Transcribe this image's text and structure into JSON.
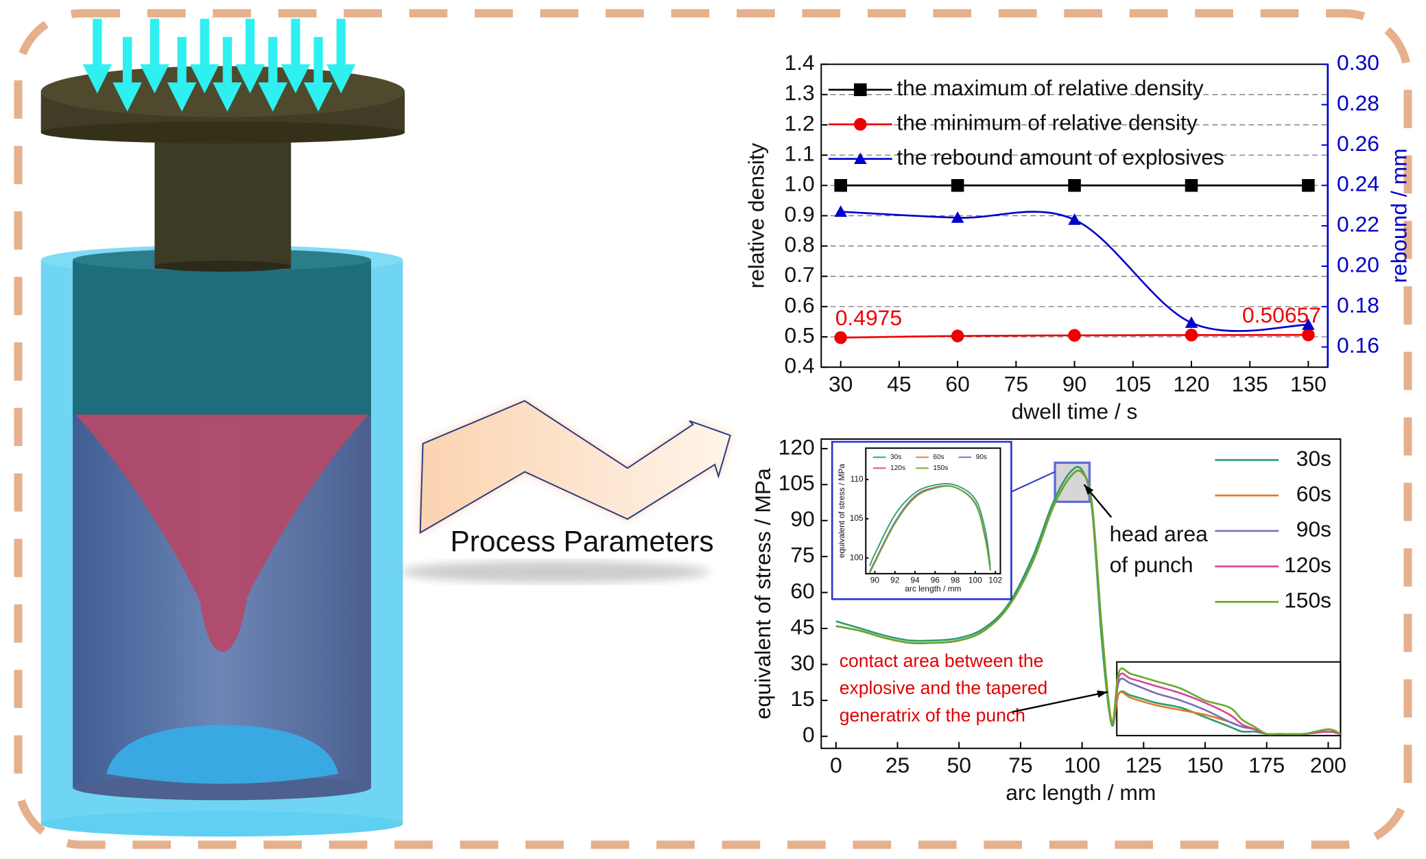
{
  "arrow_label": "Process Parameters",
  "chart_data": [
    {
      "type": "line",
      "x_label": "dwell time / s",
      "y_label": "relative density",
      "y2_label": "rebound / mm",
      "x": [
        30,
        60,
        90,
        120,
        150
      ],
      "xlim": [
        25,
        155
      ],
      "xticks": [
        30,
        45,
        60,
        75,
        90,
        105,
        120,
        135,
        150
      ],
      "ylim": [
        0.4,
        1.4
      ],
      "yticks": [
        0.4,
        0.5,
        0.6,
        0.7,
        0.8,
        0.9,
        {
          "value": 1,
          "label": "1.0"
        },
        1.1,
        1.2,
        1.3,
        1.4
      ],
      "y2lim": [
        0.15,
        0.3
      ],
      "y2ticks": [
        0.16,
        0.18,
        {
          "value": 0.2,
          "label": "0.20"
        },
        0.22,
        0.24,
        0.26,
        0.28,
        {
          "value": 0.3,
          "label": "0.30"
        }
      ],
      "grid": true,
      "legend": "upper left",
      "y2_color": "#0000cc",
      "series": [
        {
          "name": "the maximum of relative density",
          "color": "#000000",
          "marker": "square",
          "values": [
            1,
            1,
            1,
            1,
            1
          ]
        },
        {
          "name": "the minimum of relative density",
          "color": "#ee0000",
          "marker": "circle",
          "values": [
            0.4975,
            0.503,
            0.505,
            0.506,
            0.50657
          ],
          "value_labels": [
            "0.4975",
            null,
            null,
            null,
            "0.50657"
          ]
        },
        {
          "name": "the rebound amount of explosives",
          "color": "#0000cc",
          "marker": "triangle",
          "axis": "y2",
          "values": [
            0.227,
            0.224,
            0.223,
            0.172,
            0.171
          ]
        }
      ]
    },
    {
      "type": "line",
      "x_label": "arc length / mm",
      "y_label": "equivalent of stress / MPa",
      "x": [
        0,
        10,
        20,
        30,
        40,
        50,
        60,
        70,
        80,
        88,
        95,
        100,
        104,
        108,
        112,
        115,
        120,
        130,
        140,
        150,
        160,
        165,
        170,
        175,
        180,
        190,
        200,
        205
      ],
      "xlim": [
        -6,
        205
      ],
      "xticks": [
        0,
        25,
        50,
        75,
        100,
        125,
        150,
        175,
        200
      ],
      "ylim": [
        -5,
        124
      ],
      "yticks": [
        0,
        15,
        30,
        45,
        60,
        75,
        90,
        105,
        120
      ],
      "legend": "upper right",
      "annotations": [
        [
          "head area",
          "of punch"
        ],
        [
          "contact area between the",
          "explosive and the tapered",
          "generatrix of the punch"
        ]
      ],
      "series": [
        {
          "name": "30s",
          "color": "#2a9d6f",
          "values": [
            48,
            45,
            42,
            40,
            40,
            41,
            45,
            55,
            75,
            97,
            110,
            111,
            95,
            40,
            5,
            18,
            17,
            14,
            12,
            8,
            4,
            2,
            2,
            1,
            1,
            1,
            2,
            1
          ]
        },
        {
          "name": "60s",
          "color": "#e07b28",
          "values": [
            46,
            44,
            41,
            39,
            39,
            40,
            44,
            54,
            73,
            95,
            108,
            110,
            97,
            45,
            6,
            18,
            16,
            13,
            11,
            9,
            6,
            4,
            3,
            1,
            1,
            1,
            2,
            1
          ]
        },
        {
          "name": "90s",
          "color": "#7b6fb5",
          "values": [
            46,
            44,
            41,
            39,
            39,
            40,
            44,
            54,
            73,
            95,
            108,
            110,
            97,
            45,
            6,
            23,
            22,
            18,
            15,
            11,
            6,
            4,
            3,
            1,
            1,
            1,
            2,
            1
          ]
        },
        {
          "name": "120s",
          "color": "#d6449a",
          "values": [
            46,
            44,
            41,
            39,
            39,
            40,
            44,
            54,
            73,
            95,
            108,
            110,
            97,
            45,
            6,
            25,
            24,
            21,
            18,
            14,
            9,
            5,
            3,
            1,
            1,
            1,
            2,
            1
          ]
        },
        {
          "name": "150s",
          "color": "#6aaa2a",
          "values": [
            46,
            44,
            41,
            39,
            39,
            40,
            44,
            54,
            73,
            95,
            108,
            110,
            97,
            45,
            6,
            27,
            26,
            23,
            20,
            15,
            12,
            7,
            4,
            1,
            1,
            1,
            3,
            1
          ]
        }
      ]
    },
    {
      "type": "line",
      "x_label": "arc length / mm",
      "y_label": "equivalent of stress / MPa",
      "x": [
        89.5,
        90,
        92,
        94,
        96,
        98,
        100,
        101,
        101.5
      ],
      "xlim": [
        89.1,
        102.5
      ],
      "xticks": [
        90,
        92,
        94,
        96,
        98,
        100,
        102
      ],
      "ylim": [
        98,
        114
      ],
      "yticks": [
        100,
        105,
        110
      ],
      "legend": "upper center",
      "series": [
        {
          "name": "30s",
          "color": "#2a9d6f",
          "values": [
            99,
            100.5,
            105.5,
            108.3,
            109.3,
            109.3,
            107.5,
            103.5,
            99
          ]
        },
        {
          "name": "60s",
          "color": "#e07b28",
          "values": [
            98.2,
            99.5,
            104.5,
            107.8,
            109,
            109,
            107,
            102.5,
            98.5
          ]
        },
        {
          "name": "90s",
          "color": "#7b6fb5",
          "values": [
            98.3,
            99.6,
            104.6,
            107.9,
            109,
            109,
            107,
            102.6,
            98.5
          ]
        },
        {
          "name": "120s",
          "color": "#d6449a",
          "values": [
            98.2,
            99.5,
            104.4,
            107.8,
            109,
            109,
            106.9,
            102.5,
            98.4
          ]
        },
        {
          "name": "150s",
          "color": "#6aaa2a",
          "values": [
            98.1,
            99.4,
            104.4,
            107.7,
            108.9,
            109,
            106.9,
            102.4,
            98.4
          ]
        }
      ]
    }
  ]
}
